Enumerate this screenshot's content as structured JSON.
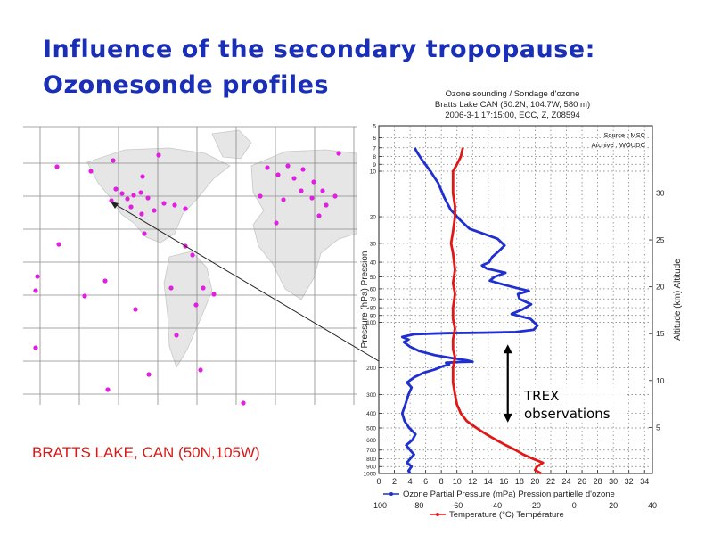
{
  "slide": {
    "title_line1": "Influence of the secondary tropopause:",
    "title_line2": "Ozonesonde profiles",
    "station_label": "BRATTS LAKE, CAN (50N,105W)"
  },
  "map": {
    "description_colors": {
      "marker": "#e020e0",
      "land": "#e6e6e6",
      "grid": "#888888"
    }
  },
  "chart_data": {
    "type": "line",
    "title": "Ozone sounding / Sondage d'ozone",
    "subtitle1": "Bratts Lake CAN (50.2N, 104.7W, 580 m)",
    "subtitle2": "2006-3-1 17:15:00, ECC, Z, Z08594",
    "source_line1": "Source : MSC",
    "source_line2": "Archive : WOUDC",
    "ylabel": "Pressure (hPa) Pression",
    "y2label": "Altitude (km) Altitude",
    "xlabel": "Ozone Partial Pressure (mPa) Pression partielle d'ozone",
    "x2label": "Temperature (°C) Température",
    "yscale": "log",
    "ylim": [
      1000,
      5
    ],
    "xlim": [
      0,
      35
    ],
    "x2lim": [
      -100,
      40
    ],
    "pressure_ticks": [
      "5",
      "6",
      "7",
      "8",
      "9",
      "10",
      "20",
      "30",
      "40",
      "50",
      "60",
      "70",
      "80",
      "90",
      "100",
      "200",
      "300",
      "400",
      "500",
      "600",
      "700",
      "800",
      "900",
      "1000"
    ],
    "x_ticks": [
      "0",
      "2",
      "4",
      "6",
      "8",
      "10",
      "12",
      "14",
      "16",
      "18",
      "20",
      "22",
      "24",
      "26",
      "28",
      "30",
      "32",
      "34"
    ],
    "x2_ticks": [
      "-100",
      "-80",
      "-60",
      "-40",
      "-20",
      "0",
      "20",
      "40"
    ],
    "altitude_ticks": [
      "5",
      "10",
      "15",
      "20",
      "25",
      "30"
    ],
    "annotation": {
      "line1": "TREX",
      "line2": "observations",
      "p_top": 140,
      "p_bottom": 460,
      "x": 16.5
    },
    "series": [
      {
        "name": "Ozone Partial Pressure (mPa) Pression partielle d'ozone",
        "color": "#1f2fd0",
        "axis": "ozone",
        "points": [
          [
            4.0,
            1000
          ],
          [
            3.8,
            960
          ],
          [
            4.2,
            900
          ],
          [
            3.6,
            850
          ],
          [
            4.0,
            800
          ],
          [
            4.5,
            750
          ],
          [
            4.0,
            700
          ],
          [
            3.5,
            650
          ],
          [
            4.3,
            600
          ],
          [
            4.7,
            550
          ],
          [
            3.9,
            500
          ],
          [
            3.3,
            450
          ],
          [
            3.0,
            400
          ],
          [
            3.4,
            350
          ],
          [
            3.8,
            300
          ],
          [
            4.2,
            270
          ],
          [
            3.6,
            250
          ],
          [
            4.6,
            230
          ],
          [
            5.8,
            215
          ],
          [
            7.2,
            205
          ],
          [
            8.2,
            195
          ],
          [
            9.0,
            190
          ],
          [
            8.6,
            185
          ],
          [
            10.2,
            183
          ],
          [
            12.0,
            182
          ],
          [
            11.2,
            178
          ],
          [
            9.2,
            172
          ],
          [
            7.2,
            165
          ],
          [
            5.2,
            155
          ],
          [
            4.0,
            145
          ],
          [
            3.2,
            135
          ],
          [
            3.8,
            130
          ],
          [
            3.0,
            125
          ],
          [
            4.5,
            120
          ],
          [
            8.5,
            118
          ],
          [
            13.5,
            117
          ],
          [
            17.5,
            116
          ],
          [
            19.8,
            112
          ],
          [
            20.3,
            105
          ],
          [
            19.4,
            95
          ],
          [
            17.0,
            88
          ],
          [
            18.4,
            82
          ],
          [
            19.5,
            76
          ],
          [
            18.0,
            70
          ],
          [
            17.8,
            65
          ],
          [
            19.2,
            62
          ],
          [
            17.5,
            59
          ],
          [
            15.8,
            56
          ],
          [
            14.2,
            53
          ],
          [
            14.8,
            50
          ],
          [
            16.2,
            47
          ],
          [
            13.8,
            44
          ],
          [
            13.2,
            42
          ],
          [
            14.1,
            40
          ],
          [
            14.5,
            37
          ],
          [
            15.3,
            34
          ],
          [
            16.1,
            31
          ],
          [
            15.2,
            28
          ],
          [
            13.5,
            26
          ],
          [
            11.6,
            24
          ],
          [
            10.4,
            21
          ],
          [
            9.2,
            18
          ],
          [
            8.4,
            15
          ],
          [
            7.6,
            12
          ],
          [
            6.6,
            10
          ],
          [
            5.6,
            8.5
          ],
          [
            4.9,
            7.5
          ],
          [
            4.6,
            7.0
          ]
        ]
      },
      {
        "name": "Temperature (°C) Température",
        "color": "#e01818",
        "axis": "temperature",
        "points": [
          [
            -17,
            1000
          ],
          [
            -20,
            950
          ],
          [
            -19,
            900
          ],
          [
            -16,
            850
          ],
          [
            -21,
            800
          ],
          [
            -26,
            750
          ],
          [
            -30,
            700
          ],
          [
            -35,
            650
          ],
          [
            -40,
            600
          ],
          [
            -45,
            550
          ],
          [
            -50,
            500
          ],
          [
            -55,
            450
          ],
          [
            -58,
            400
          ],
          [
            -60,
            350
          ],
          [
            -61,
            300
          ],
          [
            -62,
            250
          ],
          [
            -62,
            200
          ],
          [
            -61,
            170
          ],
          [
            -62,
            150
          ],
          [
            -62,
            130
          ],
          [
            -61,
            110
          ],
          [
            -62,
            95
          ],
          [
            -62,
            80
          ],
          [
            -61,
            65
          ],
          [
            -62,
            55
          ],
          [
            -61,
            45
          ],
          [
            -62,
            35
          ],
          [
            -63,
            30
          ],
          [
            -62,
            25
          ],
          [
            -61,
            20
          ],
          [
            -61,
            17
          ],
          [
            -62,
            14
          ],
          [
            -62,
            12
          ],
          [
            -62,
            10
          ],
          [
            -60,
            9
          ],
          [
            -58,
            8
          ],
          [
            -57,
            7
          ]
        ]
      }
    ]
  }
}
